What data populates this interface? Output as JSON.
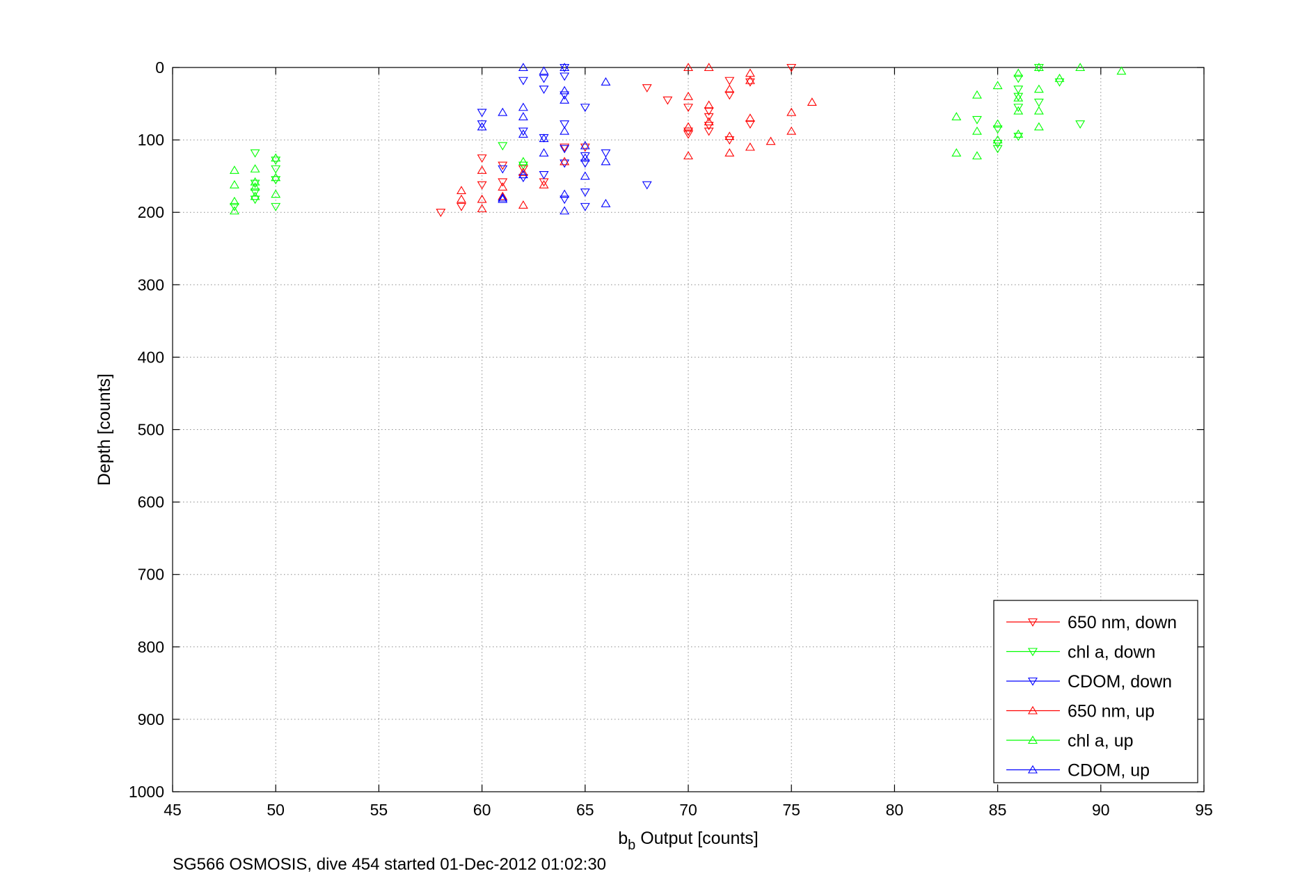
{
  "chart_data": {
    "type": "scatter",
    "title": "",
    "xlabel_main": "b",
    "xlabel_sub": "b",
    "xlabel_rest": " Output [counts]",
    "ylabel": "Depth [counts]",
    "caption": "SG566 OSMOSIS, dive 454 started 01-Dec-2012 01:02:30",
    "xlim": [
      45,
      95
    ],
    "ylim": [
      0,
      1000
    ],
    "y_reversed": true,
    "grid": true,
    "legend_position": "bottom-right",
    "xticks": [
      "45",
      "50",
      "55",
      "60",
      "65",
      "70",
      "75",
      "80",
      "85",
      "90",
      "95"
    ],
    "yticks": [
      "0",
      "100",
      "200",
      "300",
      "400",
      "500",
      "600",
      "700",
      "800",
      "900",
      "1000"
    ],
    "series": [
      {
        "name": "650 nm, down",
        "color": "#ff0000",
        "marker": "triangle-down",
        "points": [
          [
            58,
            200
          ],
          [
            59,
            192
          ],
          [
            60,
            125
          ],
          [
            60,
            162
          ],
          [
            61,
            135
          ],
          [
            61,
            158
          ],
          [
            62,
            140
          ],
          [
            63,
            158
          ],
          [
            64,
            110
          ],
          [
            65,
            110
          ],
          [
            68,
            28
          ],
          [
            69,
            45
          ],
          [
            70,
            55
          ],
          [
            70,
            88
          ],
          [
            70,
            92
          ],
          [
            71,
            68
          ],
          [
            71,
            80
          ],
          [
            71,
            88
          ],
          [
            71,
            60
          ],
          [
            72,
            18
          ],
          [
            72,
            38
          ],
          [
            72,
            100
          ],
          [
            73,
            20
          ],
          [
            73,
            78
          ],
          [
            75,
            0
          ]
        ]
      },
      {
        "name": "chl a, down",
        "color": "#00ff00",
        "marker": "triangle-down",
        "points": [
          [
            48,
            192
          ],
          [
            49,
            118
          ],
          [
            49,
            160
          ],
          [
            49,
            172
          ],
          [
            49,
            182
          ],
          [
            50,
            128
          ],
          [
            50,
            140
          ],
          [
            50,
            155
          ],
          [
            50,
            192
          ],
          [
            61,
            108
          ],
          [
            62,
            135
          ],
          [
            84,
            72
          ],
          [
            85,
            85
          ],
          [
            85,
            105
          ],
          [
            85,
            112
          ],
          [
            86,
            15
          ],
          [
            86,
            30
          ],
          [
            86,
            40
          ],
          [
            86,
            55
          ],
          [
            86,
            95
          ],
          [
            87,
            0
          ],
          [
            87,
            48
          ],
          [
            88,
            20
          ],
          [
            89,
            78
          ]
        ]
      },
      {
        "name": "CDOM, down",
        "color": "#0000ff",
        "marker": "triangle-down",
        "points": [
          [
            60,
            62
          ],
          [
            60,
            78
          ],
          [
            61,
            140
          ],
          [
            62,
            18
          ],
          [
            62,
            88
          ],
          [
            62,
            152
          ],
          [
            63,
            30
          ],
          [
            63,
            97
          ],
          [
            63,
            148
          ],
          [
            63,
            15
          ],
          [
            64,
            0
          ],
          [
            64,
            12
          ],
          [
            64,
            38
          ],
          [
            64,
            78
          ],
          [
            64,
            112
          ],
          [
            64,
            132
          ],
          [
            64,
            182
          ],
          [
            65,
            55
          ],
          [
            65,
            122
          ],
          [
            65,
            132
          ],
          [
            65,
            172
          ],
          [
            65,
            192
          ],
          [
            66,
            118
          ],
          [
            68,
            162
          ]
        ]
      },
      {
        "name": "650 nm, up",
        "color": "#ff0000",
        "marker": "triangle-up",
        "points": [
          [
            59,
            170
          ],
          [
            59,
            182
          ],
          [
            60,
            142
          ],
          [
            60,
            182
          ],
          [
            60,
            195
          ],
          [
            61,
            165
          ],
          [
            61,
            178
          ],
          [
            62,
            145
          ],
          [
            62,
            190
          ],
          [
            63,
            162
          ],
          [
            64,
            130
          ],
          [
            70,
            0
          ],
          [
            70,
            40
          ],
          [
            70,
            122
          ],
          [
            70,
            82
          ],
          [
            71,
            0
          ],
          [
            71,
            52
          ],
          [
            71,
            75
          ],
          [
            72,
            30
          ],
          [
            72,
            95
          ],
          [
            72,
            118
          ],
          [
            73,
            8
          ],
          [
            73,
            18
          ],
          [
            73,
            70
          ],
          [
            73,
            110
          ],
          [
            74,
            102
          ],
          [
            75,
            62
          ],
          [
            75,
            88
          ],
          [
            76,
            48
          ]
        ]
      },
      {
        "name": "chl a, up",
        "color": "#00ff00",
        "marker": "triangle-up",
        "points": [
          [
            48,
            142
          ],
          [
            48,
            162
          ],
          [
            48,
            185
          ],
          [
            48,
            198
          ],
          [
            49,
            140
          ],
          [
            49,
            158
          ],
          [
            49,
            165
          ],
          [
            49,
            178
          ],
          [
            50,
            125
          ],
          [
            50,
            152
          ],
          [
            50,
            175
          ],
          [
            62,
            130
          ],
          [
            83,
            68
          ],
          [
            83,
            118
          ],
          [
            84,
            38
          ],
          [
            84,
            88
          ],
          [
            84,
            122
          ],
          [
            85,
            25
          ],
          [
            85,
            78
          ],
          [
            85,
            100
          ],
          [
            86,
            8
          ],
          [
            86,
            60
          ],
          [
            86,
            92
          ],
          [
            86,
            42
          ],
          [
            87,
            0
          ],
          [
            87,
            30
          ],
          [
            87,
            60
          ],
          [
            87,
            82
          ],
          [
            88,
            15
          ],
          [
            89,
            0
          ],
          [
            91,
            5
          ]
        ]
      },
      {
        "name": "CDOM, up",
        "color": "#0000ff",
        "marker": "triangle-up",
        "points": [
          [
            60,
            82
          ],
          [
            61,
            62
          ],
          [
            61,
            180
          ],
          [
            62,
            0
          ],
          [
            62,
            55
          ],
          [
            62,
            68
          ],
          [
            62,
            92
          ],
          [
            62,
            148
          ],
          [
            63,
            5
          ],
          [
            63,
            98
          ],
          [
            64,
            0
          ],
          [
            64,
            32
          ],
          [
            64,
            45
          ],
          [
            64,
            88
          ],
          [
            64,
            175
          ],
          [
            64,
            198
          ],
          [
            65,
            108
          ],
          [
            65,
            125
          ],
          [
            65,
            150
          ],
          [
            66,
            20
          ],
          [
            66,
            130
          ],
          [
            66,
            188
          ],
          [
            63,
            118
          ],
          [
            61,
            182
          ]
        ]
      }
    ]
  }
}
